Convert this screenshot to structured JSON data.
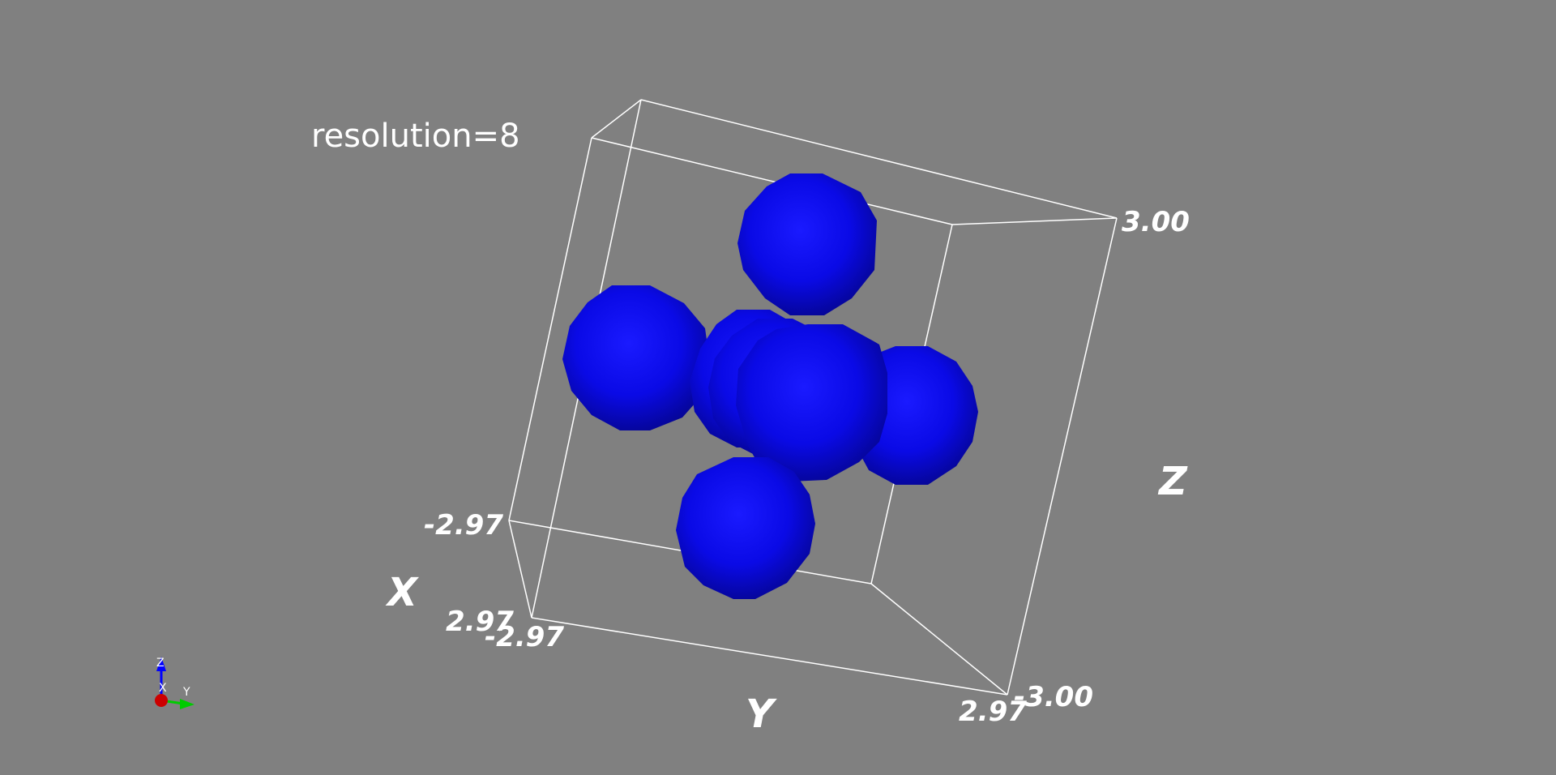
{
  "scene": {
    "title": "resolution=8",
    "background_color": "#808080",
    "sphere_color": "#0000ff",
    "box_color": "#ffffff",
    "sphere_resolution": 8
  },
  "axes": {
    "x": {
      "label": "X",
      "min": "-2.97",
      "max": "2.97"
    },
    "y": {
      "label": "Y",
      "min": "-2.97",
      "max": "2.97"
    },
    "z": {
      "label": "Z",
      "min": "-3.00",
      "max": "3.00"
    }
  },
  "orientation_widget": {
    "x_label": "X",
    "y_label": "Y",
    "z_label": "Z",
    "x_color": "#cc0000",
    "y_color": "#00cc00",
    "z_color": "#0000ff"
  }
}
